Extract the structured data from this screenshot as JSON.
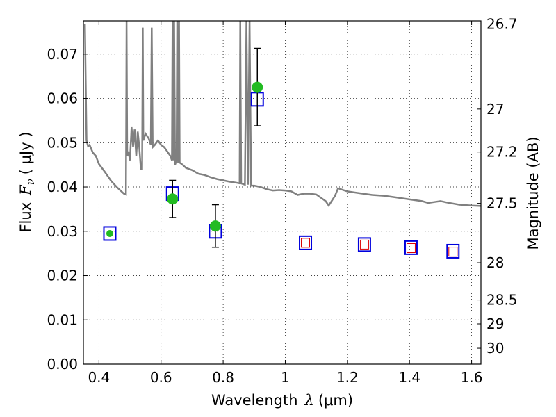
{
  "chart_data": {
    "type": "scatter",
    "title": "",
    "xlabel": "Wavelength",
    "xlabel_symbol": "λ",
    "xlabel_unit": "(μm)",
    "ylabel": "Flux",
    "ylabel_symbol": "F",
    "ylabel_subscript": "ν",
    "ylabel_unit": "(  μJy )",
    "y2label": "Magnitude (AB)",
    "xlim": [
      0.35,
      1.63
    ],
    "ylim": [
      0.0,
      0.0775
    ],
    "grid": true,
    "x_ticks": [
      0.4,
      0.6,
      0.8,
      1.0,
      1.2,
      1.4,
      1.6
    ],
    "x_tick_labels": [
      "0.4",
      "0.6",
      "0.8",
      "1",
      "1.2",
      "1.4",
      "1.6"
    ],
    "y_ticks": [
      0.0,
      0.01,
      0.02,
      0.03,
      0.04,
      0.05,
      0.06,
      0.07
    ],
    "y_tick_labels": [
      "0.00",
      "0.01",
      "0.02",
      "0.03",
      "0.04",
      "0.05",
      "0.06",
      "0.07"
    ],
    "y2_ticks": [
      {
        "label": "26.7",
        "flux": 0.0768
      },
      {
        "label": "27",
        "flux": 0.0576
      },
      {
        "label": "27.2",
        "flux": 0.0479
      },
      {
        "label": "27.5",
        "flux": 0.0363
      },
      {
        "label": "28",
        "flux": 0.0229
      },
      {
        "label": "28.5",
        "flux": 0.0145
      },
      {
        "label": "29",
        "flux": 0.0091
      },
      {
        "label": "30",
        "flux": 0.0036
      }
    ],
    "series": [
      {
        "role": "model-sed",
        "color": "#808080",
        "points": [
          [
            0.355,
            0.0768
          ],
          [
            0.36,
            0.0505
          ],
          [
            0.365,
            0.0492
          ],
          [
            0.37,
            0.0495
          ],
          [
            0.38,
            0.0478
          ],
          [
            0.39,
            0.047
          ],
          [
            0.4,
            0.0452
          ],
          [
            0.42,
            0.0433
          ],
          [
            0.44,
            0.0413
          ],
          [
            0.46,
            0.0398
          ],
          [
            0.48,
            0.0385
          ],
          [
            0.487,
            0.0383
          ],
          [
            0.489,
            0.0775
          ],
          [
            0.491,
            0.047
          ],
          [
            0.495,
            0.048
          ],
          [
            0.5,
            0.046
          ],
          [
            0.505,
            0.0535
          ],
          [
            0.51,
            0.049
          ],
          [
            0.515,
            0.053
          ],
          [
            0.52,
            0.047
          ],
          [
            0.525,
            0.0525
          ],
          [
            0.53,
            0.049
          ],
          [
            0.535,
            0.044
          ],
          [
            0.539,
            0.044
          ],
          [
            0.541,
            0.076
          ],
          [
            0.543,
            0.0505
          ],
          [
            0.55,
            0.052
          ],
          [
            0.56,
            0.051
          ],
          [
            0.567,
            0.0495
          ],
          [
            0.57,
            0.076
          ],
          [
            0.573,
            0.049
          ],
          [
            0.58,
            0.0495
          ],
          [
            0.59,
            0.0505
          ],
          [
            0.6,
            0.0495
          ],
          [
            0.61,
            0.049
          ],
          [
            0.62,
            0.048
          ],
          [
            0.63,
            0.047
          ],
          [
            0.635,
            0.046
          ],
          [
            0.637,
            0.0775
          ],
          [
            0.639,
            0.046
          ],
          [
            0.642,
            0.0775
          ],
          [
            0.645,
            0.045
          ],
          [
            0.65,
            0.046
          ],
          [
            0.652,
            0.0775
          ],
          [
            0.655,
            0.0455
          ],
          [
            0.658,
            0.0775
          ],
          [
            0.66,
            0.0455
          ],
          [
            0.67,
            0.045
          ],
          [
            0.68,
            0.0443
          ],
          [
            0.7,
            0.0438
          ],
          [
            0.72,
            0.043
          ],
          [
            0.74,
            0.0427
          ],
          [
            0.76,
            0.0422
          ],
          [
            0.78,
            0.0418
          ],
          [
            0.8,
            0.0415
          ],
          [
            0.82,
            0.0412
          ],
          [
            0.84,
            0.041
          ],
          [
            0.853,
            0.0408
          ],
          [
            0.855,
            0.0775
          ],
          [
            0.858,
            0.0408
          ],
          [
            0.87,
            0.0405
          ],
          [
            0.875,
            0.0775
          ],
          [
            0.88,
            0.0405
          ],
          [
            0.885,
            0.0775
          ],
          [
            0.89,
            0.0403
          ],
          [
            0.9,
            0.0403
          ],
          [
            0.92,
            0.04
          ],
          [
            0.94,
            0.0395
          ],
          [
            0.96,
            0.0392
          ],
          [
            0.98,
            0.0393
          ],
          [
            1.0,
            0.0392
          ],
          [
            1.02,
            0.039
          ],
          [
            1.04,
            0.0382
          ],
          [
            1.06,
            0.0385
          ],
          [
            1.08,
            0.0385
          ],
          [
            1.1,
            0.0383
          ],
          [
            1.13,
            0.0368
          ],
          [
            1.14,
            0.0358
          ],
          [
            1.16,
            0.038
          ],
          [
            1.17,
            0.0397
          ],
          [
            1.2,
            0.039
          ],
          [
            1.24,
            0.0386
          ],
          [
            1.28,
            0.0382
          ],
          [
            1.32,
            0.038
          ],
          [
            1.36,
            0.0376
          ],
          [
            1.4,
            0.0372
          ],
          [
            1.44,
            0.0368
          ],
          [
            1.46,
            0.0364
          ],
          [
            1.48,
            0.0366
          ],
          [
            1.5,
            0.0368
          ],
          [
            1.52,
            0.0365
          ],
          [
            1.56,
            0.036
          ],
          [
            1.6,
            0.0358
          ],
          [
            1.63,
            0.0357
          ]
        ]
      },
      {
        "role": "model-photometry",
        "marker": "open-square",
        "color": "#0000dd",
        "points": [
          [
            0.435,
            0.0295
          ],
          [
            0.637,
            0.0385
          ],
          [
            0.775,
            0.03
          ],
          [
            0.91,
            0.0598
          ],
          [
            1.065,
            0.0274
          ],
          [
            1.255,
            0.027
          ],
          [
            1.405,
            0.0263
          ],
          [
            1.54,
            0.0255
          ]
        ]
      },
      {
        "role": "upper-limits",
        "marker": "open-square-small",
        "color": "#dd0000",
        "points": [
          [
            1.065,
            0.0274
          ],
          [
            1.255,
            0.027
          ],
          [
            1.405,
            0.0262
          ],
          [
            1.54,
            0.0254
          ]
        ]
      },
      {
        "role": "observed-photometry",
        "marker": "filled-circle",
        "color": "#22bb22",
        "points": [
          {
            "x": 0.435,
            "y": 0.0295,
            "err_lo": 0.0,
            "err_hi": 0.0,
            "small": true
          },
          {
            "x": 0.637,
            "y": 0.0373,
            "err_lo": 0.0042,
            "err_hi": 0.0042
          },
          {
            "x": 0.775,
            "y": 0.0312,
            "err_lo": 0.0048,
            "err_hi": 0.0048
          },
          {
            "x": 0.91,
            "y": 0.0625,
            "err_lo": 0.0087,
            "err_hi": 0.0088
          }
        ]
      }
    ]
  }
}
